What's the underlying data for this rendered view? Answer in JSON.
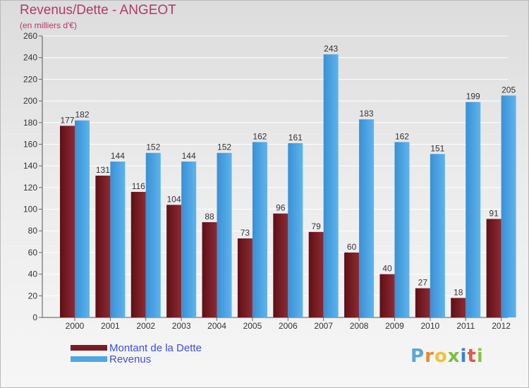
{
  "header": {
    "title": "Revenus/Dette - ANGEOT",
    "subtitle": "(en milliers d'€)"
  },
  "chart_data": {
    "type": "bar",
    "categories": [
      "2000",
      "2001",
      "2002",
      "2003",
      "2004",
      "2005",
      "2006",
      "2007",
      "2008",
      "2009",
      "2010",
      "2011",
      "2012"
    ],
    "series": [
      {
        "name": "Montant de la Dette",
        "color": "#7a1c24",
        "values": [
          177,
          131,
          116,
          104,
          88,
          73,
          96,
          79,
          60,
          40,
          27,
          18,
          91
        ]
      },
      {
        "name": "Revenus",
        "color": "#4ea6e6",
        "values": [
          182,
          144,
          152,
          144,
          152,
          162,
          161,
          243,
          183,
          162,
          151,
          199,
          205
        ]
      }
    ],
    "ylim": [
      0,
      260
    ],
    "yticks": [
      0,
      20,
      40,
      60,
      80,
      100,
      120,
      140,
      160,
      180,
      200,
      220,
      240,
      260
    ],
    "grid": true,
    "legend_position": "bottom-left"
  },
  "legend": {
    "items": [
      {
        "label": "Montant de la Dette",
        "color": "#7a1c24"
      },
      {
        "label": "Revenus",
        "color": "#4ea6e6"
      }
    ]
  },
  "logo": {
    "letters": [
      "P",
      "r",
      "o",
      "x",
      "i",
      "t",
      "i"
    ],
    "colors": [
      "#5aa7d6",
      "#e58a2c",
      "#f0c23a",
      "#7bbf3d",
      "#3d7fd4",
      "#e0594a",
      "#8bc34a"
    ]
  }
}
